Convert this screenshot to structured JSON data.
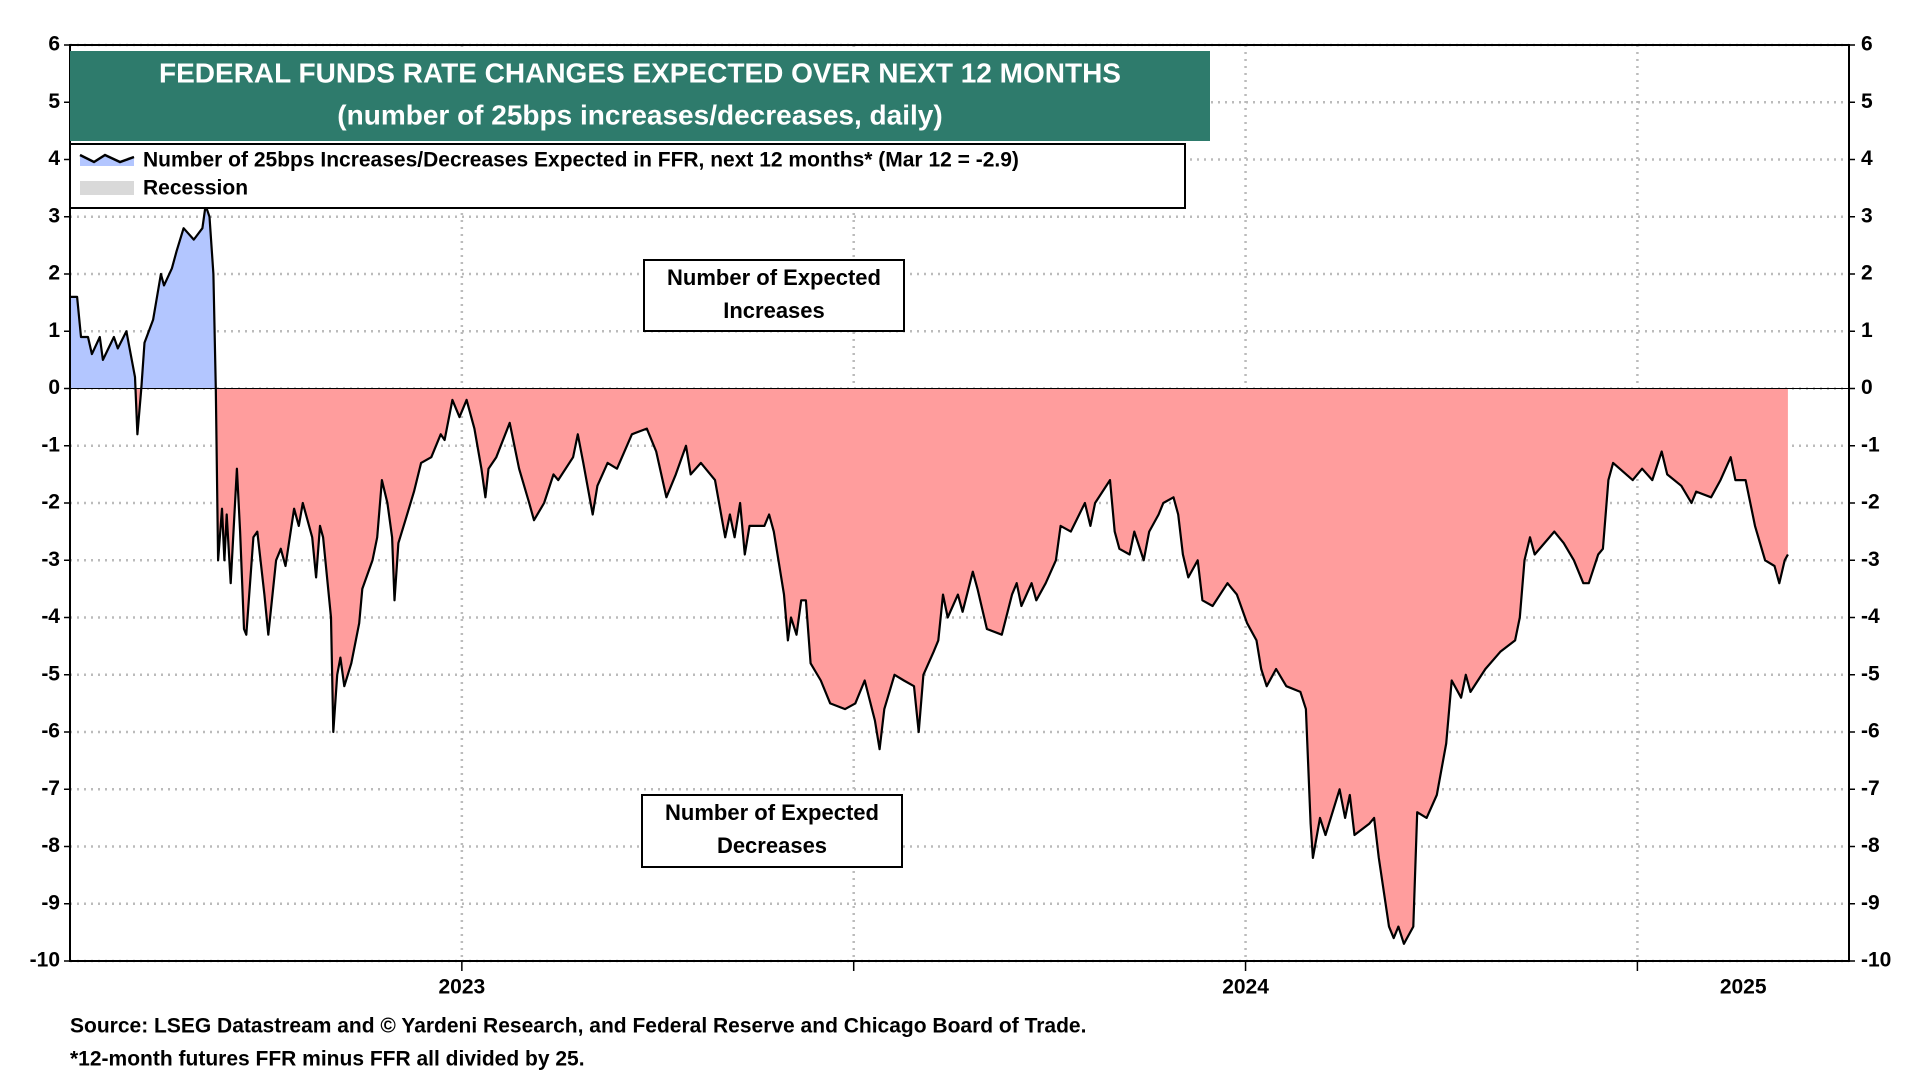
{
  "chart_data": {
    "type": "area_line",
    "title": "FEDERAL FUNDS RATE CHANGES EXPECTED OVER NEXT 12 MONTHS",
    "subtitle": "(number of 25bps increases/decreases, daily)",
    "x": [
      2023.0,
      2023.009,
      2023.014,
      2023.023,
      2023.028,
      2023.038,
      2023.042,
      2023.056,
      2023.061,
      2023.072,
      2023.083,
      2023.086,
      2023.091,
      2023.095,
      2023.106,
      2023.116,
      2023.12,
      2023.13,
      2023.136,
      2023.145,
      2023.158,
      2023.169,
      2023.173,
      2023.178,
      2023.183,
      2023.186,
      2023.189,
      2023.194,
      2023.197,
      2023.2,
      2023.205,
      2023.213,
      2023.217,
      2023.222,
      2023.225,
      2023.234,
      2023.239,
      2023.248,
      2023.253,
      2023.263,
      2023.269,
      2023.275,
      2023.286,
      2023.292,
      2023.297,
      2023.309,
      2023.314,
      2023.319,
      2023.323,
      2023.333,
      2023.336,
      2023.341,
      2023.345,
      2023.35,
      2023.359,
      2023.369,
      2023.373,
      2023.386,
      2023.392,
      2023.398,
      2023.405,
      2023.411,
      2023.414,
      2023.419,
      2023.428,
      2023.439,
      2023.448,
      2023.461,
      2023.473,
      2023.478,
      2023.488,
      2023.497,
      2023.506,
      2023.516,
      2023.525,
      2023.53,
      2023.534,
      2023.544,
      2023.561,
      2023.573,
      2023.586,
      2023.592,
      2023.605,
      2023.617,
      2023.623,
      2023.642,
      2023.648,
      2023.655,
      2023.667,
      2023.673,
      2023.686,
      2023.698,
      2023.717,
      2023.736,
      2023.748,
      2023.761,
      2023.773,
      2023.786,
      2023.792,
      2023.805,
      2023.823,
      2023.836,
      2023.842,
      2023.848,
      2023.855,
      2023.861,
      2023.867,
      2023.886,
      2023.892,
      2023.898,
      2023.911,
      2023.916,
      2023.92,
      2023.927,
      2023.933,
      2023.939,
      2023.945,
      2023.958,
      2023.97,
      2023.989,
      2024.002,
      2024.014,
      2024.027,
      2024.033,
      2024.039,
      2024.052,
      2024.064,
      2024.077,
      2024.083,
      2024.089,
      2024.102,
      2024.108,
      2024.114,
      2024.12,
      2024.133,
      2024.139,
      2024.152,
      2024.158,
      2024.17,
      2024.189,
      2024.202,
      2024.208,
      2024.214,
      2024.227,
      2024.233,
      2024.245,
      2024.258,
      2024.264,
      2024.277,
      2024.295,
      2024.302,
      2024.308,
      2024.327,
      2024.333,
      2024.339,
      2024.352,
      2024.358,
      2024.37,
      2024.377,
      2024.389,
      2024.395,
      2024.408,
      2024.414,
      2024.42,
      2024.427,
      2024.439,
      2024.445,
      2024.458,
      2024.477,
      2024.489,
      2024.502,
      2024.514,
      2024.52,
      2024.527,
      2024.539,
      2024.552,
      2024.57,
      2024.577,
      2024.583,
      2024.586,
      2024.595,
      2024.602,
      2024.62,
      2024.627,
      2024.633,
      2024.639,
      2024.658,
      2024.664,
      2024.67,
      2024.683,
      2024.689,
      2024.695,
      2024.702,
      2024.714,
      2024.719,
      2024.731,
      2024.744,
      2024.756,
      2024.763,
      2024.775,
      2024.781,
      2024.787,
      2024.806,
      2024.825,
      2024.844,
      2024.85,
      2024.856,
      2024.863,
      2024.869,
      2024.894,
      2024.906,
      2024.919,
      2024.931,
      2024.938,
      2024.95,
      2024.956,
      2024.963,
      2024.969,
      2024.994,
      2025.006,
      2025.019,
      2025.031,
      2025.038,
      2025.056,
      2025.069,
      2025.075,
      2025.094,
      2025.106,
      2025.119,
      2025.125,
      2025.138,
      2025.15,
      2025.163,
      2025.175,
      2025.181,
      2025.188,
      2025.192
    ],
    "series": [
      {
        "name": "Number of 25bps Increases/Decreases Expected in FFR, next 12 months* (Mar 12 = -2.9)",
        "color": "#000000",
        "pos_fill": "#b3c6ff",
        "neg_fill": "#ff9d9d",
        "values": [
          1.6,
          1.6,
          0.9,
          0.9,
          0.6,
          0.9,
          0.5,
          0.9,
          0.7,
          1.0,
          0.2,
          -0.8,
          0.0,
          0.8,
          1.2,
          2.0,
          1.8,
          2.1,
          2.4,
          2.8,
          2.6,
          2.8,
          3.2,
          3.0,
          2.0,
          0.0,
          -3.0,
          -2.1,
          -3.0,
          -2.2,
          -3.4,
          -1.4,
          -2.5,
          -4.2,
          -4.3,
          -2.6,
          -2.5,
          -3.6,
          -4.3,
          -3.0,
          -2.8,
          -3.1,
          -2.1,
          -2.4,
          -2.0,
          -2.6,
          -3.3,
          -2.4,
          -2.6,
          -4.0,
          -6.0,
          -5.0,
          -4.7,
          -5.2,
          -4.8,
          -4.1,
          -3.5,
          -3.0,
          -2.6,
          -1.6,
          -2.0,
          -2.6,
          -3.7,
          -2.7,
          -2.3,
          -1.8,
          -1.3,
          -1.2,
          -0.8,
          -0.9,
          -0.2,
          -0.5,
          -0.2,
          -0.7,
          -1.4,
          -1.9,
          -1.4,
          -1.2,
          -0.6,
          -1.4,
          -2.0,
          -2.3,
          -2.0,
          -1.5,
          -1.6,
          -1.2,
          -0.8,
          -1.3,
          -2.2,
          -1.7,
          -1.3,
          -1.4,
          -0.8,
          -0.7,
          -1.1,
          -1.9,
          -1.5,
          -1.0,
          -1.5,
          -1.3,
          -1.6,
          -2.6,
          -2.2,
          -2.6,
          -2.0,
          -2.9,
          -2.4,
          -2.4,
          -2.2,
          -2.5,
          -3.6,
          -4.4,
          -4.0,
          -4.3,
          -3.7,
          -3.7,
          -4.8,
          -5.1,
          -5.5,
          -5.6,
          -5.5,
          -5.1,
          -5.8,
          -6.3,
          -5.6,
          -5.0,
          -5.1,
          -5.2,
          -6.0,
          -5.0,
          -4.6,
          -4.4,
          -3.6,
          -4.0,
          -3.6,
          -3.9,
          -3.2,
          -3.5,
          -4.2,
          -4.3,
          -3.6,
          -3.4,
          -3.8,
          -3.4,
          -3.7,
          -3.4,
          -3.0,
          -2.4,
          -2.5,
          -2.0,
          -2.4,
          -2.0,
          -1.6,
          -2.5,
          -2.8,
          -2.9,
          -2.5,
          -3.0,
          -2.5,
          -2.2,
          -2.0,
          -1.9,
          -2.2,
          -2.9,
          -3.3,
          -3.0,
          -3.7,
          -3.8,
          -3.4,
          -3.6,
          -4.1,
          -4.4,
          -4.9,
          -5.2,
          -4.9,
          -5.2,
          -5.3,
          -5.6,
          -7.6,
          -8.2,
          -7.5,
          -7.8,
          -7.0,
          -7.5,
          -7.1,
          -7.8,
          -7.6,
          -7.5,
          -8.2,
          -9.4,
          -9.6,
          -9.4,
          -9.7,
          -9.4,
          -7.4,
          -7.5,
          -7.1,
          -6.2,
          -5.1,
          -5.4,
          -5.0,
          -5.3,
          -4.9,
          -4.6,
          -4.4,
          -4.0,
          -3.0,
          -2.6,
          -2.9,
          -2.5,
          -2.7,
          -3.0,
          -3.4,
          -3.4,
          -2.9,
          -2.8,
          -1.6,
          -1.3,
          -1.6,
          -1.4,
          -1.6,
          -1.1,
          -1.5,
          -1.7,
          -2.0,
          -1.8,
          -1.9,
          -1.6,
          -1.2,
          -1.6,
          -1.6,
          -2.4,
          -3.0,
          -3.1,
          -3.4,
          -3.0,
          -2.9
        ]
      }
    ],
    "recession_label": "Recession",
    "recession_color": "#d9d9d9",
    "annotations": [
      {
        "lines": [
          "Number of Expected",
          "Increases"
        ]
      },
      {
        "lines": [
          "Number of Expected",
          "Decreases"
        ]
      }
    ],
    "xlim": [
      2023,
      2025.27
    ],
    "xticks": [
      {
        "value": 2023.5,
        "label": "2023"
      },
      {
        "value": 2024.5,
        "label": "2024"
      },
      {
        "value": 2025.135,
        "label": "2025"
      }
    ],
    "xgrid": [
      2023.5,
      2024,
      2024.5,
      2025
    ],
    "ylim": [
      -10,
      6
    ],
    "yticks": [
      -10,
      -9,
      -8,
      -7,
      -6,
      -5,
      -4,
      -3,
      -2,
      -1,
      0,
      1,
      2,
      3,
      4,
      5,
      6
    ],
    "grid": true,
    "title_color": "#2e7b6c",
    "notes": [
      "Source: LSEG Datastream and © Yardeni Research, and Federal Reserve and Chicago Board of Trade.",
      "*12-month futures FFR minus FFR all divided by 25."
    ]
  }
}
